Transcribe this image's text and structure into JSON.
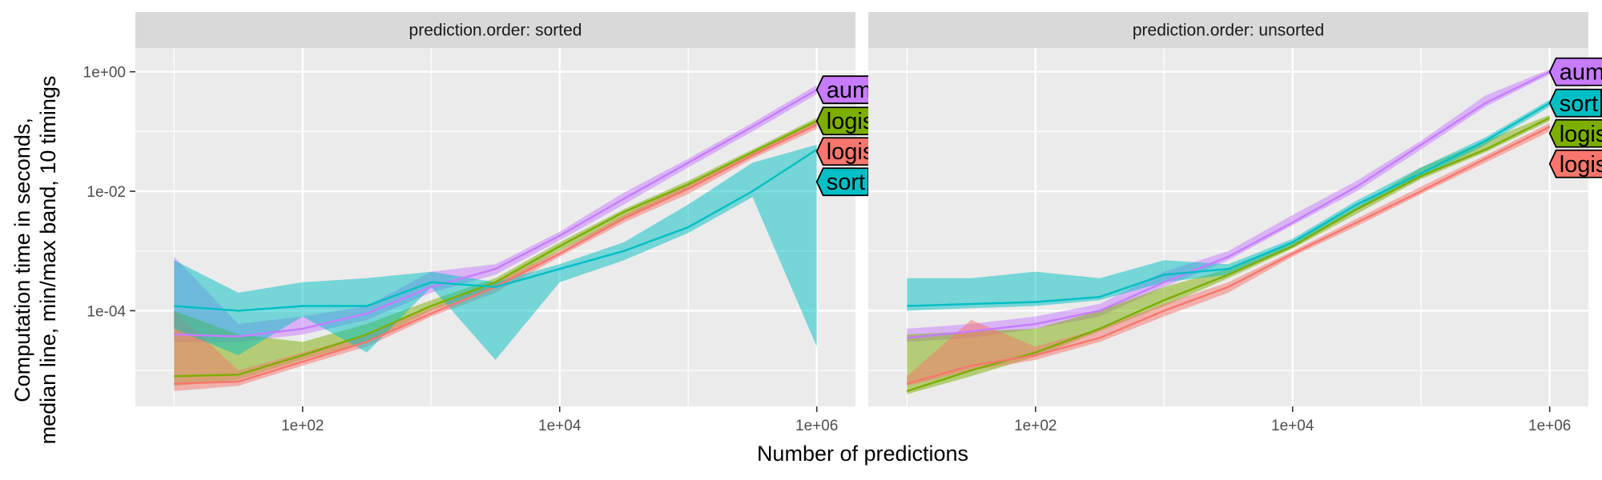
{
  "chart_data": {
    "type": "line",
    "xlabel": "Number of predictions",
    "ylabel_lines": [
      "Computation time in seconds,",
      "median line, min/max band, 10 timings"
    ],
    "x_scale": "log10",
    "y_scale": "log10",
    "xlim": [
      5,
      2000000
    ],
    "ylim": [
      2.5e-06,
      2.5
    ],
    "x_ticks": [
      100,
      10000,
      1000000
    ],
    "x_tick_labels": [
      "1e+02",
      "1e+04",
      "1e+06"
    ],
    "y_ticks": [
      0.0001,
      0.01,
      1
    ],
    "y_tick_labels": [
      "1e-04",
      "1e-02",
      "1e+00"
    ],
    "grid": true,
    "legend": "direct labels at line ends",
    "colors": {
      "aum": "#C77CFF",
      "logistic.loss": "#7CAE00",
      "logistic.grad": "#F8766D",
      "sort": "#00BFC4"
    },
    "panels": [
      {
        "strip": "prediction.order: sorted",
        "x": [
          10,
          31.6,
          100,
          316,
          1000,
          3162,
          10000,
          31623,
          100000,
          316228,
          1000000
        ],
        "series": [
          {
            "name": "aum",
            "median": [
              4e-05,
              3.7e-05,
              5e-05,
              9e-05,
              0.00025,
              0.0005,
              0.0018,
              0.0075,
              0.03,
              0.12,
              0.5
            ],
            "min": [
              3e-05,
              3e-05,
              4e-05,
              7e-05,
              0.0002,
              0.0004,
              0.0015,
              0.006,
              0.025,
              0.1,
              0.42
            ],
            "max": [
              0.0008,
              6e-05,
              8e-05,
              0.00012,
              0.00045,
              0.0006,
              0.0021,
              0.0095,
              0.035,
              0.14,
              0.6
            ]
          },
          {
            "name": "logistic.loss",
            "median": [
              8e-06,
              8.5e-06,
              1.8e-05,
              4e-05,
              0.00012,
              0.0003,
              0.0012,
              0.0045,
              0.013,
              0.045,
              0.15
            ],
            "min": [
              5.5e-06,
              7e-06,
              1.5e-05,
              3e-05,
              0.0001,
              0.00025,
              0.001,
              0.0035,
              0.011,
              0.038,
              0.13
            ],
            "max": [
              0.0001,
              4e-05,
              3e-05,
              6e-05,
              0.00015,
              0.00035,
              0.0014,
              0.005,
              0.015,
              0.05,
              0.17
            ]
          },
          {
            "name": "logistic.grad",
            "median": [
              6e-06,
              6.5e-06,
              1.4e-05,
              3e-05,
              9e-05,
              0.00025,
              0.0009,
              0.0035,
              0.011,
              0.04,
              0.13
            ],
            "min": [
              4.5e-06,
              5.5e-06,
              1.2e-05,
              2.5e-05,
              8e-05,
              0.0002,
              0.0008,
              0.003,
              0.009,
              0.035,
              0.11
            ],
            "max": [
              0.0001,
              1e-05,
              2e-05,
              4e-05,
              0.00011,
              0.0003,
              0.001,
              0.004,
              0.013,
              0.045,
              0.15
            ]
          },
          {
            "name": "sort",
            "median": [
              0.00012,
              0.0001,
              0.00012,
              0.00012,
              0.0003,
              0.00025,
              0.0005,
              0.001,
              0.0025,
              0.01,
              0.05
            ],
            "min": [
              5e-05,
              1.8e-05,
              8e-05,
              2e-05,
              0.00025,
              1.5e-05,
              0.0003,
              0.0007,
              0.002,
              0.008,
              2.5e-05
            ],
            "max": [
              0.0007,
              0.0002,
              0.0003,
              0.00035,
              0.00045,
              0.0003,
              0.0006,
              0.0014,
              0.006,
              0.03,
              0.06
            ]
          }
        ]
      },
      {
        "strip": "prediction.order: unsorted",
        "x": [
          10,
          31.6,
          100,
          316,
          1000,
          3162,
          10000,
          31623,
          100000,
          316228,
          1000000
        ],
        "series": [
          {
            "name": "aum",
            "median": [
              3.5e-05,
              4.5e-05,
              6e-05,
              0.0001,
              0.0003,
              0.0008,
              0.003,
              0.012,
              0.06,
              0.3,
              1.0
            ],
            "min": [
              3e-05,
              3.5e-05,
              5e-05,
              8e-05,
              0.00025,
              0.0007,
              0.0027,
              0.01,
              0.05,
              0.26,
              0.9
            ],
            "max": [
              5e-05,
              6e-05,
              8e-05,
              0.00013,
              0.00045,
              0.001,
              0.004,
              0.015,
              0.07,
              0.4,
              1.1
            ]
          },
          {
            "name": "logistic.loss",
            "median": [
              4.5e-06,
              1e-05,
              2e-05,
              5e-05,
              0.00015,
              0.0004,
              0.0012,
              0.005,
              0.018,
              0.05,
              0.17
            ],
            "min": [
              4e-06,
              8e-06,
              1.7e-05,
              4.5e-05,
              0.00012,
              0.00035,
              0.0011,
              0.0042,
              0.016,
              0.045,
              0.15
            ],
            "max": [
              4e-05,
              4.5e-05,
              5e-05,
              0.0001,
              0.00025,
              0.0005,
              0.0014,
              0.0055,
              0.025,
              0.07,
              0.19
            ]
          },
          {
            "name": "logistic.grad",
            "median": [
              6e-06,
              1.2e-05,
              1.8e-05,
              3.5e-05,
              0.0001,
              0.00025,
              0.0009,
              0.003,
              0.01,
              0.035,
              0.12
            ],
            "min": [
              5.5e-06,
              1e-05,
              1.5e-05,
              3e-05,
              8e-05,
              0.0002,
              0.0008,
              0.0026,
              0.009,
              0.03,
              0.1
            ],
            "max": [
              8e-06,
              7e-05,
              2.5e-05,
              5e-05,
              0.00013,
              0.0003,
              0.001,
              0.0035,
              0.012,
              0.04,
              0.14
            ]
          },
          {
            "name": "sort",
            "median": [
              0.00012,
              0.00013,
              0.00014,
              0.00017,
              0.0004,
              0.0005,
              0.0014,
              0.006,
              0.02,
              0.07,
              0.3
            ],
            "min": [
              0.0001,
              0.00011,
              0.00012,
              0.00015,
              0.0003,
              0.0004,
              0.0012,
              0.005,
              0.017,
              0.06,
              0.26
            ],
            "max": [
              0.00035,
              0.00035,
              0.00045,
              0.00035,
              0.0007,
              0.0006,
              0.0016,
              0.007,
              0.025,
              0.08,
              0.34
            ]
          }
        ]
      }
    ],
    "label_order": [
      [
        "aum",
        "logistic.loss",
        "logistic.grad",
        "sort"
      ],
      [
        "aum",
        "sort",
        "logistic.loss",
        "logistic.grad"
      ]
    ]
  }
}
